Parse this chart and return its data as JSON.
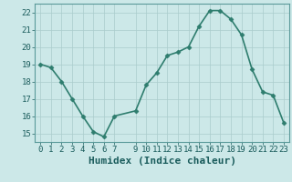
{
  "x": [
    0,
    1,
    2,
    3,
    4,
    5,
    6,
    7,
    9,
    10,
    11,
    12,
    13,
    14,
    15,
    16,
    17,
    18,
    19,
    20,
    21,
    22,
    23
  ],
  "y": [
    19,
    18.8,
    18,
    17,
    16,
    15.1,
    14.8,
    16,
    16.3,
    17.8,
    18.5,
    19.5,
    19.7,
    20,
    21.2,
    22.1,
    22.1,
    21.6,
    20.7,
    18.7,
    17.4,
    17.2,
    15.6
  ],
  "xlabel": "Humidex (Indice chaleur)",
  "ylim": [
    14.5,
    22.5
  ],
  "xlim": [
    -0.5,
    23.5
  ],
  "yticks": [
    15,
    16,
    17,
    18,
    19,
    20,
    21,
    22
  ],
  "xticks": [
    0,
    1,
    2,
    3,
    4,
    5,
    6,
    7,
    9,
    10,
    11,
    12,
    13,
    14,
    15,
    16,
    17,
    18,
    19,
    20,
    21,
    22,
    23
  ],
  "line_color": "#2e7d6e",
  "bg_color": "#cce8e8",
  "grid_color": "#aacccc",
  "marker_size": 2.5,
  "line_width": 1.2,
  "tick_fontsize": 6.5,
  "xlabel_fontsize": 8
}
